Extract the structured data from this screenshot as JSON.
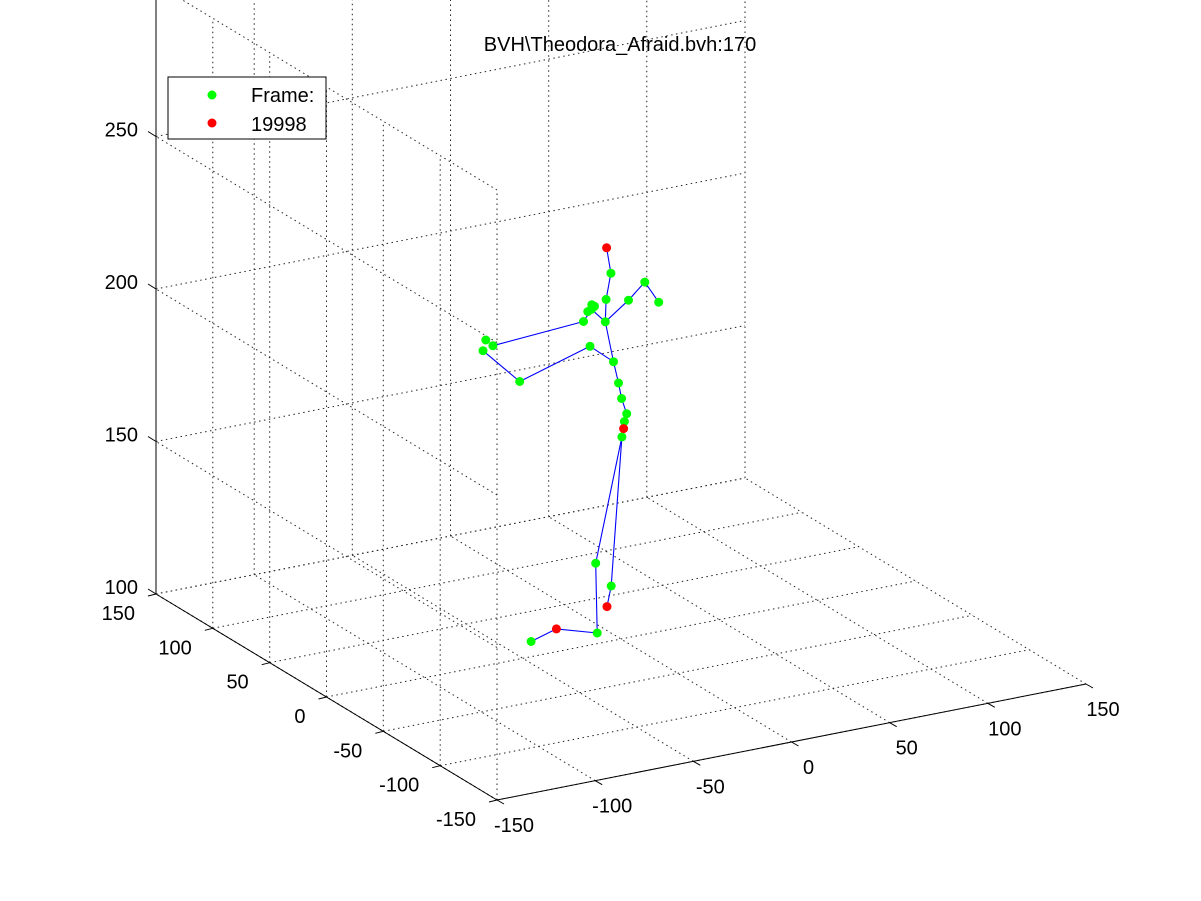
{
  "chart_data": {
    "type": "scatter",
    "title": "BVH\\Theodora_Afraid.bvh:170",
    "xlabel": "",
    "ylabel": "",
    "zlabel": "",
    "xlim": [
      -150,
      150
    ],
    "ylim": [
      -150,
      150
    ],
    "zlim": [
      100,
      300
    ],
    "x_ticks": [
      "-150",
      "-100",
      "-50",
      "0",
      "50",
      "100",
      "150"
    ],
    "y_ticks": [
      "-150",
      "-100",
      "-50",
      "0",
      "50",
      "100",
      "150"
    ],
    "z_ticks": [
      "100",
      "150",
      "200",
      "250",
      "300"
    ],
    "grid": true,
    "legend_position": "top-left",
    "legend": [
      {
        "label": "Frame:",
        "color": "#00ff00"
      },
      {
        "label": "19998",
        "color": "#ff0000"
      }
    ],
    "colors": {
      "joint": "#00ff00",
      "end_effector": "#ff0000",
      "bone": "#0000ff"
    },
    "series": [
      {
        "name": "Frame:",
        "color": "#00ff00",
        "points": [
          {
            "id": "hips",
            "x": 0,
            "y": -5,
            "z": 175
          },
          {
            "id": "spine",
            "x": -2,
            "y": -4,
            "z": 180
          },
          {
            "id": "spine1",
            "x": -3,
            "y": -3,
            "z": 185
          },
          {
            "id": "spine2",
            "x": -5,
            "y": -2,
            "z": 192
          },
          {
            "id": "neck",
            "x": -8,
            "y": 0,
            "z": 205
          },
          {
            "id": "neck1",
            "x": -7,
            "y": 1,
            "z": 212
          },
          {
            "id": "head",
            "x": -4,
            "y": 2,
            "z": 220
          },
          {
            "id": "lshoulder",
            "x": 5,
            "y": 2,
            "z": 210
          },
          {
            "id": "larm",
            "x": 15,
            "y": 5,
            "z": 214
          },
          {
            "id": "lforearm",
            "x": 25,
            "y": 10,
            "z": 205
          },
          {
            "id": "rshoulder",
            "x": -15,
            "y": 0,
            "z": 210
          },
          {
            "id": "rarm",
            "x": -22,
            "y": -5,
            "z": 208
          },
          {
            "id": "rforearm",
            "x": -10,
            "y": 10,
            "z": 195
          },
          {
            "id": "rhand",
            "x": -40,
            "y": 20,
            "z": 185
          },
          {
            "id": "rhand_f1",
            "x": -50,
            "y": 35,
            "z": 193
          },
          {
            "id": "rhand_f2",
            "x": -48,
            "y": 36,
            "z": 196
          },
          {
            "id": "rhand_f3",
            "x": -45,
            "y": 35,
            "z": 194
          },
          {
            "id": "lhand_f1",
            "x": -14,
            "y": 5,
            "z": 208
          },
          {
            "id": "lhand_f2",
            "x": -12,
            "y": 5,
            "z": 210
          },
          {
            "id": "lhand_f3",
            "x": -10,
            "y": 6,
            "z": 209
          },
          {
            "id": "lupleg",
            "x": 0,
            "y": -3,
            "z": 172
          },
          {
            "id": "lleg",
            "x": -10,
            "y": 5,
            "z": 125
          },
          {
            "id": "rupleg",
            "x": -3,
            "y": -6,
            "z": 168
          },
          {
            "id": "rleg",
            "x": -5,
            "y": 0,
            "z": 118
          },
          {
            "id": "rfoot",
            "x": -15,
            "y": -5,
            "z": 105
          },
          {
            "id": "ltoe",
            "x": -40,
            "y": 10,
            "z": 102
          }
        ]
      },
      {
        "name": "19998",
        "color": "#ff0000",
        "points": [
          {
            "id": "head_end",
            "x": -5,
            "y": 4,
            "z": 228
          },
          {
            "id": "hips_marker",
            "x": -1,
            "y": -4,
            "z": 170
          },
          {
            "id": "lfoot",
            "x": -10,
            "y": -5,
            "z": 113
          },
          {
            "id": "ltoe_end",
            "x": -30,
            "y": 5,
            "z": 106
          }
        ]
      }
    ]
  }
}
